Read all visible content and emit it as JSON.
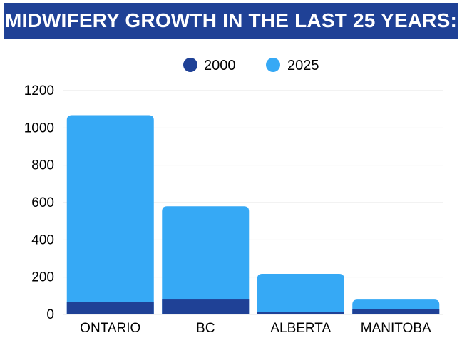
{
  "header": {
    "title": "MIDWIFERY GROWTH IN THE LAST 25 YEARS:"
  },
  "colors": {
    "title_bg": "#1f4196",
    "series_2000": "#1f4196",
    "series_2025": "#36a9f5",
    "grid": "#e6e6e6"
  },
  "chart_data": {
    "type": "bar",
    "stacked": "overlay",
    "categories": [
      "ONTARIO",
      "BC",
      "ALBERTA",
      "MANITOBA"
    ],
    "series": [
      {
        "name": "2000",
        "values": [
          68,
          80,
          12,
          27
        ],
        "color": "#1f4196"
      },
      {
        "name": "2025",
        "values": [
          1068,
          580,
          218,
          80
        ],
        "color": "#36a9f5"
      }
    ],
    "yticks": [
      "0",
      "200",
      "400",
      "600",
      "800",
      "1000",
      "1200"
    ],
    "ylim": [
      0,
      1200
    ],
    "grid": true,
    "legend": "top-center"
  }
}
